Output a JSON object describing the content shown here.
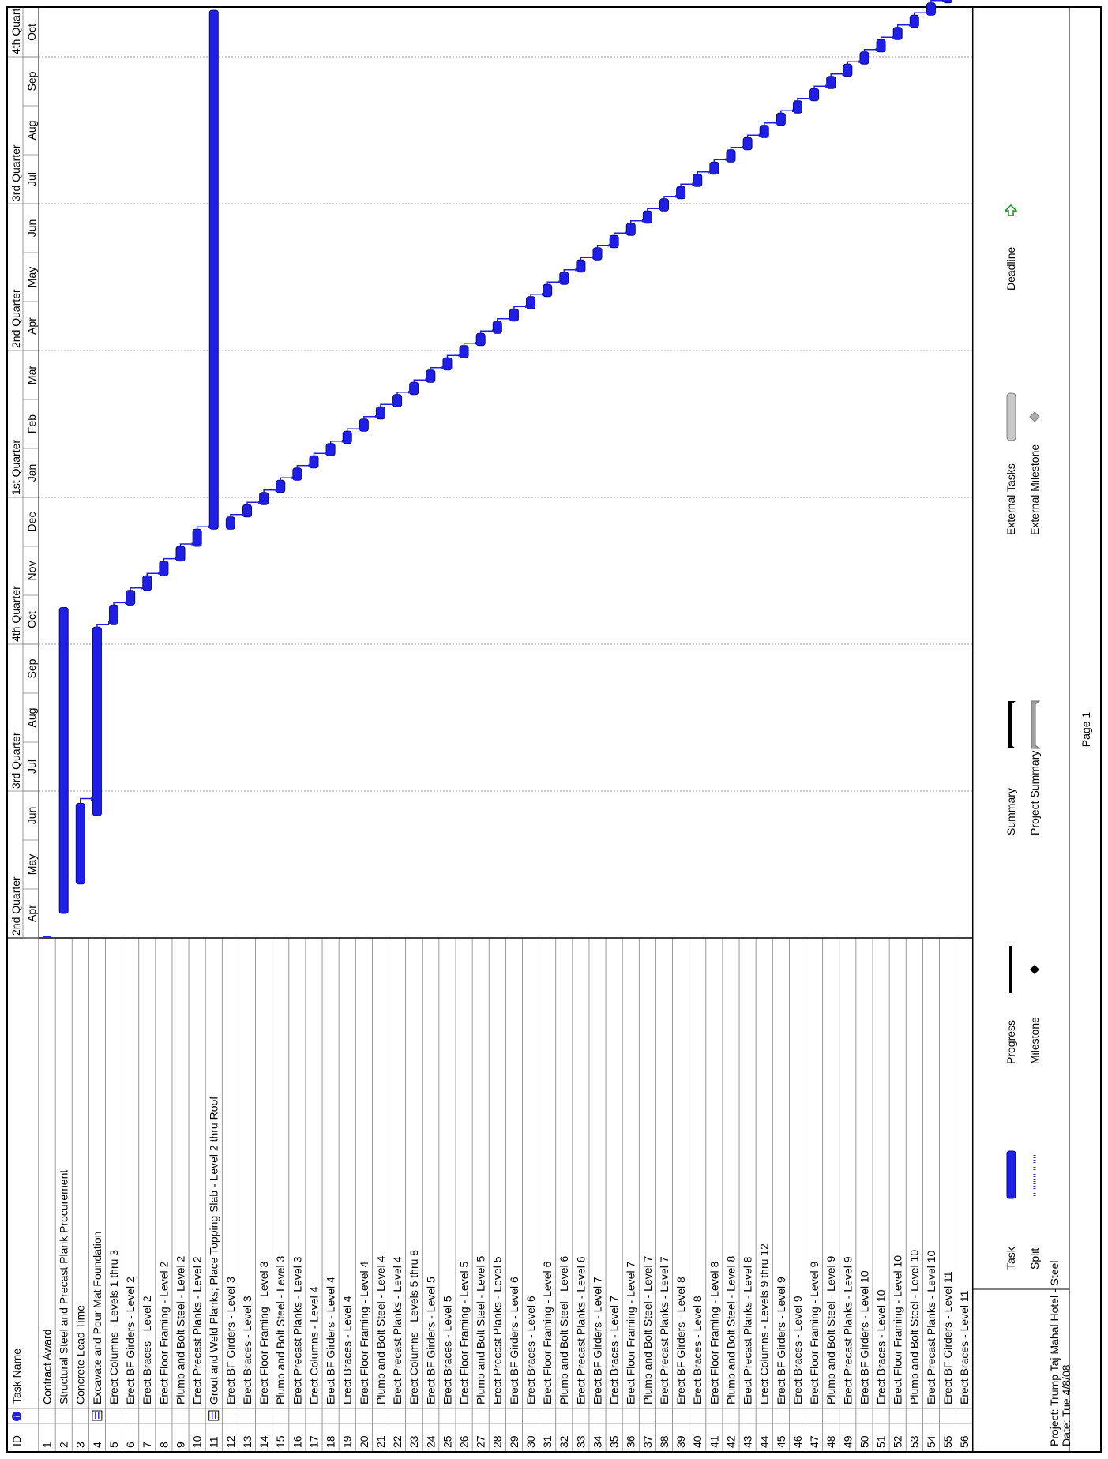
{
  "table": {
    "id_header": "ID",
    "info_header_icon": "info-icon",
    "name_header": "Task Name"
  },
  "timescale": {
    "quarters": [
      "2nd Quarter",
      "3rd Quarter",
      "4th Quarter",
      "1st Quarter",
      "2nd Quarter",
      "3rd Quarter",
      "4th Quart"
    ],
    "months": [
      "Apr",
      "May",
      "Jun",
      "Jul",
      "Aug",
      "Sep",
      "Oct",
      "Nov",
      "Dec",
      "Jan",
      "Feb",
      "Mar",
      "Apr",
      "May",
      "Jun",
      "Jul",
      "Aug",
      "Sep",
      "Oct"
    ]
  },
  "chart_data": {
    "type": "gantt",
    "bar_color": "#1e1ee6",
    "tasks": [
      {
        "id": 1,
        "name": "Contract Award",
        "start": 0.0,
        "end": 0.05,
        "milestone_marker": true
      },
      {
        "id": 2,
        "name": "Structural Steel and Precast Plank Procurement",
        "start": 0.5,
        "end": 6.75
      },
      {
        "id": 3,
        "name": "Concrete Lead Time",
        "start": 1.1,
        "end": 2.75
      },
      {
        "id": 4,
        "name": "Excavate and Pour Mat Foundation",
        "start": 2.5,
        "end": 6.35,
        "note_icon": true
      },
      {
        "id": 5,
        "name": "Erect Columns - Levels 1 thru 3",
        "start": 6.4,
        "end": 6.8
      },
      {
        "id": 6,
        "name": "Erect BF Girders - Level 2",
        "start": 6.8,
        "end": 7.1
      },
      {
        "id": 7,
        "name": "Erect Braces - Level 2",
        "start": 7.1,
        "end": 7.4
      },
      {
        "id": 8,
        "name": "Erect Floor Framing - Level 2",
        "start": 7.4,
        "end": 7.7
      },
      {
        "id": 9,
        "name": "Plumb and Bolt Steel - Level 2",
        "start": 7.7,
        "end": 8.0
      },
      {
        "id": 10,
        "name": "Erect Precast Planks - Level 2",
        "start": 8.0,
        "end": 8.35
      },
      {
        "id": 11,
        "name": "Grout and Weld Planks; Place Topping Slab - Level 2 thru Roof",
        "start": 8.35,
        "end": 18.95,
        "note_icon": true
      },
      {
        "id": 12,
        "name": "Erect BF Girders - Level 3",
        "start": 8.35,
        "end": 8.6
      },
      {
        "id": 13,
        "name": "Erect Braces - Level 3",
        "start": 8.6,
        "end": 8.85
      },
      {
        "id": 14,
        "name": "Erect Floor Framing - Level 3",
        "start": 8.85,
        "end": 9.1
      },
      {
        "id": 15,
        "name": "Plumb and Bolt Steel - Level 3",
        "start": 9.1,
        "end": 9.35
      },
      {
        "id": 16,
        "name": "Erect Precast Planks - Level 3",
        "start": 9.35,
        "end": 9.6
      },
      {
        "id": 17,
        "name": "Erect Columns - Level 4",
        "start": 9.6,
        "end": 9.85
      },
      {
        "id": 18,
        "name": "Erect BF Girders - Level 4",
        "start": 9.85,
        "end": 10.1
      },
      {
        "id": 19,
        "name": "Erect Braces - Level 4",
        "start": 10.1,
        "end": 10.35
      },
      {
        "id": 20,
        "name": "Erect Floor Framing - Level 4",
        "start": 10.35,
        "end": 10.6
      },
      {
        "id": 21,
        "name": "Plumb and Bolt Steel - Level 4",
        "start": 10.6,
        "end": 10.85
      },
      {
        "id": 22,
        "name": "Erect Precast Planks - Level 4",
        "start": 10.85,
        "end": 11.1
      },
      {
        "id": 23,
        "name": "Erect Columns - Levels 5 thru 8",
        "start": 11.1,
        "end": 11.35
      },
      {
        "id": 24,
        "name": "Erect BF Girders - Level 5",
        "start": 11.35,
        "end": 11.6
      },
      {
        "id": 25,
        "name": "Erect Braces - Level 5",
        "start": 11.6,
        "end": 11.85
      },
      {
        "id": 26,
        "name": "Erect Floor Framing - Level 5",
        "start": 11.85,
        "end": 12.1
      },
      {
        "id": 27,
        "name": "Plumb and Bolt Steel - Level 5",
        "start": 12.1,
        "end": 12.35
      },
      {
        "id": 28,
        "name": "Erect Precast Planks - Level 5",
        "start": 12.35,
        "end": 12.6
      },
      {
        "id": 29,
        "name": "Erect BF Girders - Level 6",
        "start": 12.6,
        "end": 12.85
      },
      {
        "id": 30,
        "name": "Erect Braces - Level 6",
        "start": 12.85,
        "end": 13.1
      },
      {
        "id": 31,
        "name": "Erect Floor Framing - Level 6",
        "start": 13.1,
        "end": 13.35
      },
      {
        "id": 32,
        "name": "Plumb and Bolt Steel - Level 6",
        "start": 13.35,
        "end": 13.6
      },
      {
        "id": 33,
        "name": "Erect Precast Planks - Level 6",
        "start": 13.6,
        "end": 13.85
      },
      {
        "id": 34,
        "name": "Erect BF Girders - Level 7",
        "start": 13.85,
        "end": 14.1
      },
      {
        "id": 35,
        "name": "Erect Braces - Level 7",
        "start": 14.1,
        "end": 14.35
      },
      {
        "id": 36,
        "name": "Erect Floor Framing - Level 7",
        "start": 14.35,
        "end": 14.6
      },
      {
        "id": 37,
        "name": "Plumb and Bolt Steel - Level 7",
        "start": 14.6,
        "end": 14.85
      },
      {
        "id": 38,
        "name": "Erect Precast Planks - Level 7",
        "start": 14.85,
        "end": 15.1
      },
      {
        "id": 39,
        "name": "Erect BF Girders - Level 8",
        "start": 15.1,
        "end": 15.35
      },
      {
        "id": 40,
        "name": "Erect Braces - Level 8",
        "start": 15.35,
        "end": 15.6
      },
      {
        "id": 41,
        "name": "Erect Floor Framing - Level 8",
        "start": 15.6,
        "end": 15.85
      },
      {
        "id": 42,
        "name": "Plumb and Bolt Steel - Level 8",
        "start": 15.85,
        "end": 16.1
      },
      {
        "id": 43,
        "name": "Erect Precast Planks - Level 8",
        "start": 16.1,
        "end": 16.35
      },
      {
        "id": 44,
        "name": "Erect Columns - Levels 9 thru 12",
        "start": 16.35,
        "end": 16.6
      },
      {
        "id": 45,
        "name": "Erect BF Girders - Level 9",
        "start": 16.6,
        "end": 16.85
      },
      {
        "id": 46,
        "name": "Erect Braces - Level 9",
        "start": 16.85,
        "end": 17.1
      },
      {
        "id": 47,
        "name": "Erect Floor Framing - Level 9",
        "start": 17.1,
        "end": 17.35
      },
      {
        "id": 48,
        "name": "Plumb and Bolt Steel - Level 9",
        "start": 17.35,
        "end": 17.6
      },
      {
        "id": 49,
        "name": "Erect Precast Planks - Level 9",
        "start": 17.6,
        "end": 17.85
      },
      {
        "id": 50,
        "name": "Erect BF Girders - Level 10",
        "start": 17.85,
        "end": 18.1
      },
      {
        "id": 51,
        "name": "Erect Braces - Level 10",
        "start": 18.1,
        "end": 18.35
      },
      {
        "id": 52,
        "name": "Erect Floor Framing - Level 10",
        "start": 18.35,
        "end": 18.6
      },
      {
        "id": 53,
        "name": "Plumb and Bolt Steel - Level 10",
        "start": 18.6,
        "end": 18.85
      },
      {
        "id": 54,
        "name": "Erect Precast Planks - Level 10",
        "start": 18.85,
        "end": 19.1
      },
      {
        "id": 55,
        "name": "Erect BF Girders - Level 11",
        "start": 19.1,
        "end": 19.35
      },
      {
        "id": 56,
        "name": "Erect Braces - Level 11",
        "start": 19.35,
        "end": 19.6
      }
    ]
  },
  "footer": {
    "project_line": "Project: Trump Taj Mahal Hotel - Steel",
    "date_line": "Date: Tue 4/8/08",
    "page_label": "Page 1",
    "legend": [
      {
        "label": "Task",
        "symbol": "task-bar-icon"
      },
      {
        "label": "Split",
        "symbol": "split-dotted-icon"
      },
      {
        "label": "Progress",
        "symbol": "progress-line-icon"
      },
      {
        "label": "Milestone",
        "symbol": "milestone-diamond-icon"
      },
      {
        "label": "Summary",
        "symbol": "summary-bar-icon"
      },
      {
        "label": "Project Summary",
        "symbol": "project-summary-bar-icon"
      },
      {
        "label": "External Tasks",
        "symbol": "external-tasks-bar-icon"
      },
      {
        "label": "External Milestone",
        "symbol": "external-milestone-diamond-icon"
      },
      {
        "label": "Deadline",
        "symbol": "deadline-arrow-icon"
      }
    ]
  }
}
